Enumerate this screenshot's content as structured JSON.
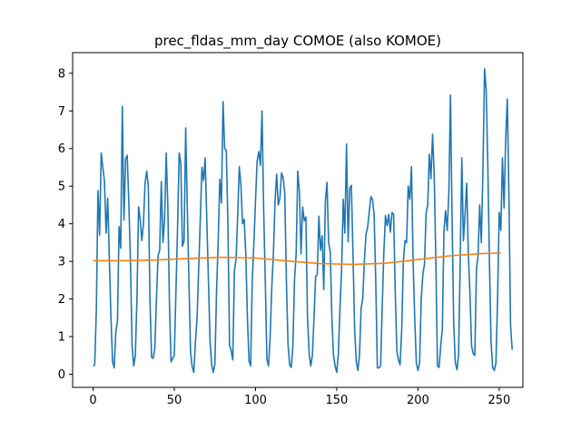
{
  "chart_data": {
    "type": "line",
    "title": "prec_fldas_mm_day COMOE (also KOMOE)",
    "xlabel": "",
    "ylabel": "",
    "xlim": [
      -12.6,
      264.6
    ],
    "ylim": [
      -0.35,
      8.55
    ],
    "xticks": [
      0,
      50,
      100,
      150,
      200,
      250
    ],
    "yticks": [
      0,
      1,
      2,
      3,
      4,
      5,
      6,
      7,
      8
    ],
    "grid": false,
    "legend": "none",
    "series": [
      {
        "color": "#1f77b4",
        "values": [
          0.22,
          0.25,
          1.7,
          4.88,
          3.7,
          5.88,
          5.5,
          5.13,
          3.75,
          4.68,
          3.08,
          1.5,
          0.33,
          0.17,
          1.13,
          1.42,
          3.92,
          3.35,
          7.12,
          4.1,
          5.72,
          5.82,
          4.55,
          3.0,
          0.75,
          0.22,
          0.5,
          2.0,
          4.45,
          4.12,
          3.55,
          4.0,
          5.08,
          5.4,
          5.0,
          2.0,
          0.45,
          0.42,
          0.68,
          2.0,
          3.15,
          3.3,
          5.12,
          3.5,
          4.1,
          5.88,
          4.5,
          1.9,
          0.33,
          0.42,
          0.5,
          2.2,
          3.9,
          5.88,
          5.62,
          3.4,
          3.55,
          6.55,
          4.4,
          2.5,
          0.58,
          0.2,
          0.05,
          0.85,
          1.5,
          2.8,
          4.12,
          5.5,
          5.15,
          5.75,
          4.1,
          2.5,
          0.88,
          0.25,
          0.05,
          0.28,
          2.2,
          3.5,
          5.18,
          4.55,
          7.25,
          6.0,
          5.95,
          4.0,
          0.78,
          0.62,
          0.38,
          2.75,
          3.05,
          4.2,
          5.52,
          5.05,
          4.0,
          4.12,
          3.2,
          1.5,
          0.35,
          0.22,
          2.5,
          3.5,
          4.62,
          5.68,
          5.92,
          5.55,
          7.0,
          4.4,
          2.5,
          0.4,
          0.22,
          1.0,
          2.3,
          3.2,
          4.6,
          5.32,
          4.5,
          4.68,
          5.35,
          5.22,
          4.8,
          2.5,
          0.8,
          0.25,
          0.18,
          0.75,
          2.5,
          3.2,
          5.4,
          4.85,
          3.2,
          4.45,
          4.08,
          4.18,
          1.5,
          0.55,
          0.22,
          0.5,
          1.5,
          2.6,
          2.65,
          4.2,
          3.3,
          3.68,
          2.25,
          4.6,
          5.1,
          3.5,
          3.25,
          1.5,
          0.5,
          0.22,
          0.05,
          0.55,
          1.78,
          2.8,
          4.65,
          3.75,
          6.12,
          3.52,
          4.95,
          5.02,
          3.2,
          1.2,
          0.35,
          0.1,
          0.5,
          1.75,
          2.0,
          3.0,
          3.72,
          3.9,
          4.32,
          4.72,
          4.65,
          4.25,
          2.5,
          0.17,
          0.17,
          0.22,
          1.8,
          3.25,
          4.22,
          3.95,
          4.25,
          3.78,
          4.3,
          4.25,
          2.2,
          0.62,
          0.38,
          0.25,
          1.2,
          3.0,
          3.55,
          3.5,
          5.0,
          4.65,
          5.52,
          3.0,
          1.5,
          0.3,
          0.1,
          0.3,
          2.0,
          2.65,
          2.92,
          4.28,
          4.5,
          5.85,
          5.2,
          6.38,
          5.3,
          3.05,
          0.22,
          0.18,
          0.75,
          1.2,
          3.82,
          4.35,
          3.82,
          4.8,
          7.42,
          4.15,
          1.35,
          0.3,
          0.12,
          0.5,
          3.0,
          5.75,
          3.55,
          4.25,
          5.08,
          3.2,
          2.15,
          0.75,
          0.55,
          0.5,
          2.8,
          3.15,
          4.5,
          3.5,
          5.42,
          8.12,
          7.55,
          5.55,
          3.0,
          0.85,
          0.18,
          0.1,
          0.3,
          2.0,
          4.3,
          3.82,
          5.75,
          4.42,
          6.25,
          7.32,
          4.75,
          1.3,
          0.65
        ]
      },
      {
        "color": "#ff7f0e",
        "x": [
          0,
          20,
          40,
          60,
          80,
          100,
          120,
          140,
          160,
          180,
          200,
          220,
          240,
          251
        ],
        "values": [
          3.02,
          3.02,
          3.04,
          3.08,
          3.11,
          3.09,
          3.01,
          2.94,
          2.92,
          2.95,
          3.05,
          3.15,
          3.21,
          3.22
        ]
      }
    ]
  }
}
